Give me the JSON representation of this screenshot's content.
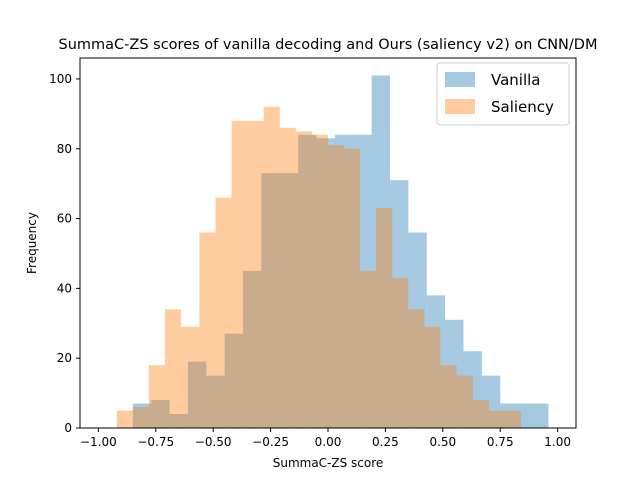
{
  "chart_data": {
    "type": "histogram",
    "title": "SummaC-ZS scores of vanilla decoding and Ours (saliency v2) on CNN/DM",
    "xlabel": "SummaC-ZS score",
    "ylabel": "Frequency",
    "xlim": [
      -1.08,
      1.08
    ],
    "ylim": [
      0,
      106
    ],
    "xticks": [
      "−1.00",
      "−0.75",
      "−0.50",
      "−0.25",
      "0.00",
      "0.25",
      "0.50",
      "0.75",
      "1.00"
    ],
    "xtick_values": [
      -1.0,
      -0.75,
      -0.5,
      -0.25,
      0.0,
      0.25,
      0.5,
      0.75,
      1.0
    ],
    "yticks": [
      "0",
      "20",
      "40",
      "60",
      "80",
      "100"
    ],
    "ytick_values": [
      0,
      20,
      40,
      60,
      80,
      100
    ],
    "grid": false,
    "legend_position": "top-right",
    "series": [
      {
        "name": "Vanilla",
        "color": "#1f77b4",
        "alpha": 0.4,
        "bin_edges": [
          -0.85,
          -0.77,
          -0.69,
          -0.61,
          -0.53,
          -0.45,
          -0.37,
          -0.29,
          -0.21,
          -0.13,
          -0.05,
          0.03,
          0.11,
          0.19,
          0.27,
          0.35,
          0.43,
          0.51,
          0.59,
          0.67,
          0.75,
          0.83,
          0.91,
          0.96
        ],
        "counts": [
          7,
          8,
          4,
          19,
          15,
          27,
          45,
          73,
          73,
          84,
          83,
          84,
          84,
          101,
          71,
          56,
          38,
          31,
          22,
          15,
          7,
          7,
          7
        ]
      },
      {
        "name": "Saliency",
        "color": "#ff7f0e",
        "alpha": 0.4,
        "bin_edges": [
          -0.92,
          -0.85,
          -0.78,
          -0.71,
          -0.64,
          -0.56,
          -0.49,
          -0.42,
          -0.35,
          -0.28,
          -0.21,
          -0.14,
          -0.07,
          0.0,
          0.07,
          0.14,
          0.21,
          0.28,
          0.35,
          0.42,
          0.49,
          0.56,
          0.63,
          0.7,
          0.77,
          0.84
        ],
        "counts": [
          5,
          6,
          18,
          34,
          29,
          56,
          66,
          88,
          88,
          92,
          86,
          85,
          84,
          81,
          80,
          45,
          63,
          43,
          34,
          29,
          18,
          15,
          8,
          5,
          5
        ]
      }
    ]
  }
}
